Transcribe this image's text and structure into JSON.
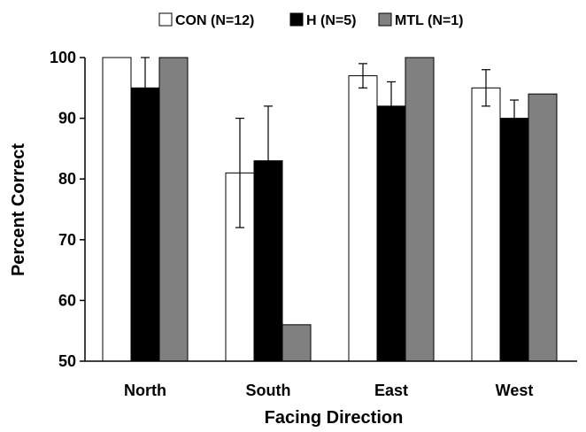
{
  "chart_data": {
    "type": "bar",
    "title": "",
    "xlabel": "Facing Direction",
    "ylabel": "Percent Correct",
    "ylim": [
      50,
      100
    ],
    "yticks": [
      50,
      60,
      70,
      80,
      90,
      100
    ],
    "grid": false,
    "legend_position": "top",
    "categories": [
      "North",
      "South",
      "East",
      "West"
    ],
    "series": [
      {
        "name": "CON (N=12)",
        "color": "#ffffff",
        "values": [
          100,
          81,
          97,
          95
        ],
        "error_low": [
          null,
          72,
          95,
          92
        ],
        "error_high": [
          null,
          90,
          99,
          98
        ]
      },
      {
        "name": "H (N=5)",
        "color": "#000000",
        "values": [
          95,
          83,
          92,
          90
        ],
        "error_low": [
          null,
          74,
          88,
          87
        ],
        "error_high": [
          100,
          92,
          96,
          93
        ]
      },
      {
        "name": "MTL (N=1)",
        "color": "#808080",
        "values": [
          100,
          56,
          100,
          94
        ],
        "error_low": [
          null,
          null,
          null,
          null
        ],
        "error_high": [
          null,
          null,
          null,
          null
        ]
      }
    ]
  }
}
